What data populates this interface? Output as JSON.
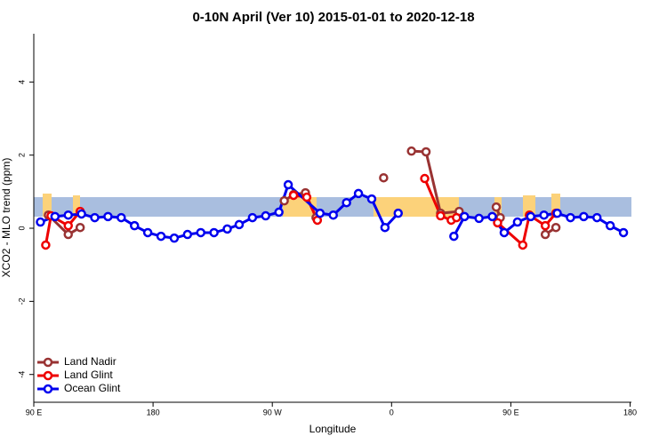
{
  "chart_data": {
    "type": "line",
    "title": "0-10N April (Ver 10)   2015-01-01 to 2020-12-18",
    "x_label": "Longitude",
    "y_label": "XCO2 - MLO trend (ppm)",
    "xlim": [
      90,
      541
    ],
    "ylim": [
      -4.76,
      5.32
    ],
    "xticks": [
      {
        "value": 90,
        "label": "90 E"
      },
      {
        "value": 180,
        "label": "180"
      },
      {
        "value": 270,
        "label": "90 W"
      },
      {
        "value": 360,
        "label": "0"
      },
      {
        "value": 450,
        "label": "90 E"
      },
      {
        "value": 540,
        "label": "180"
      }
    ],
    "yticks": [
      -4,
      -2,
      0,
      2,
      4
    ],
    "legend": "bottom-left",
    "series": [
      {
        "name": "Land Nadir",
        "color": "#993333",
        "x": [
          101,
          116,
          125,
          null,
          279,
          286,
          295,
          303,
          null,
          354,
          null,
          375,
          386,
          397,
          411,
          null,
          439,
          442,
          null,
          476,
          484
        ],
        "values": [
          0.36,
          -0.17,
          0.02,
          null,
          0.75,
          0.92,
          0.97,
          0.29,
          null,
          1.38,
          null,
          2.11,
          2.09,
          0.41,
          0.46,
          null,
          0.58,
          0.29,
          null,
          -0.17,
          0.02
        ]
      },
      {
        "name": "Land Glint",
        "color": "#ee0000",
        "x": [
          99,
          103,
          116,
          125,
          null,
          286,
          296,
          304,
          null,
          385,
          397,
          405,
          409,
          null,
          440,
          459,
          464,
          476,
          484
        ],
        "values": [
          -0.46,
          0.34,
          0.07,
          0.46,
          null,
          0.9,
          0.85,
          0.22,
          null,
          1.36,
          0.34,
          0.22,
          0.29,
          null,
          0.15,
          -0.46,
          0.36,
          0.07,
          0.41
        ]
      },
      {
        "name": "Ocean Glint",
        "color": "#0000ee",
        "x": [
          95,
          106,
          116,
          126,
          136,
          146,
          156,
          166,
          176,
          186,
          196,
          206,
          216,
          226,
          236,
          245,
          255,
          265,
          275,
          282,
          306,
          316,
          326,
          335,
          345,
          355,
          365,
          null,
          407,
          415,
          426,
          436,
          445,
          455,
          465,
          475,
          485,
          495,
          505,
          515,
          525,
          535
        ],
        "values": [
          0.17,
          0.32,
          0.36,
          0.39,
          0.29,
          0.32,
          0.29,
          0.07,
          -0.12,
          -0.22,
          -0.27,
          -0.17,
          -0.12,
          -0.12,
          -0.02,
          0.1,
          0.29,
          0.34,
          0.44,
          1.19,
          0.41,
          0.36,
          0.7,
          0.95,
          0.8,
          0.02,
          0.41,
          null,
          -0.22,
          0.32,
          0.27,
          0.32,
          -0.12,
          0.17,
          0.32,
          0.36,
          0.41,
          0.29,
          0.32,
          0.29,
          0.07,
          -0.12
        ]
      }
    ]
  }
}
